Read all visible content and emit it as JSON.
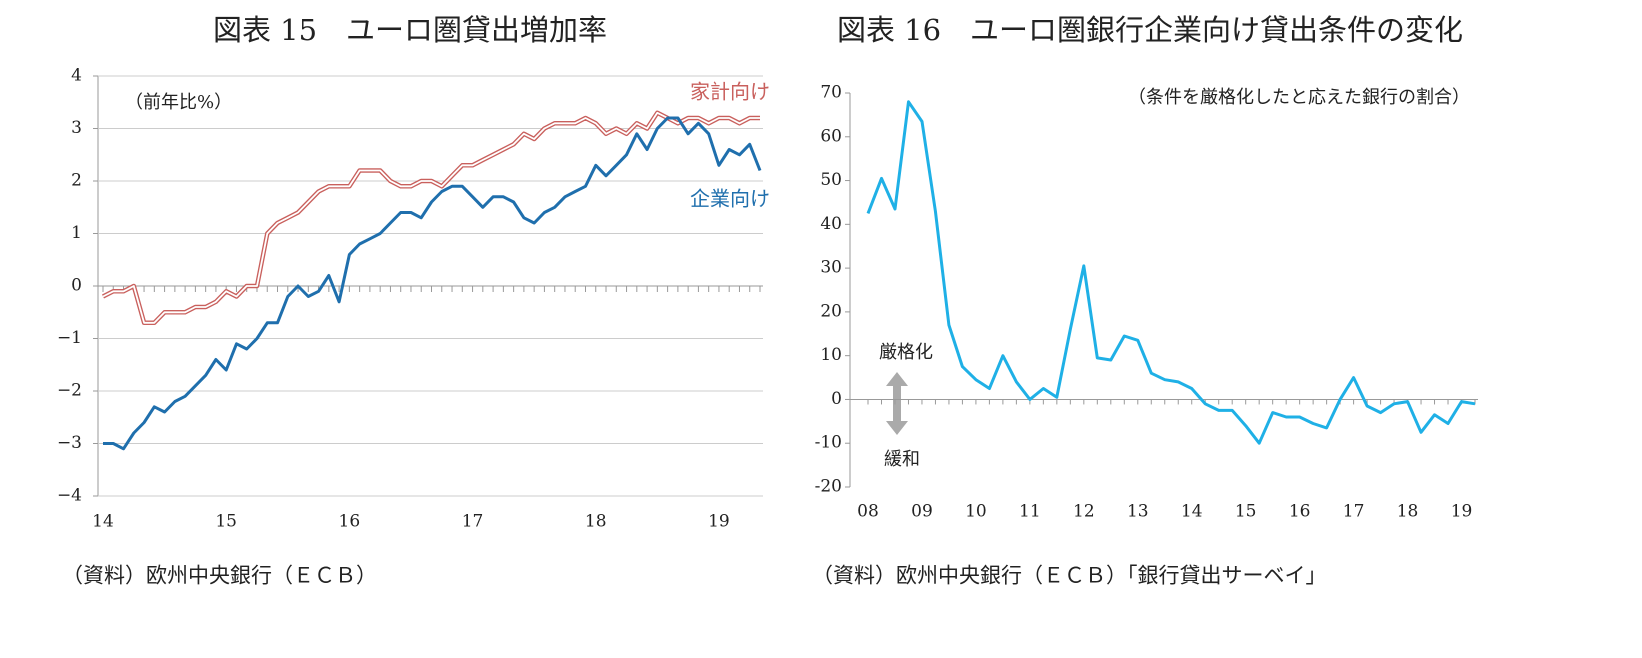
{
  "chart_data": [
    {
      "type": "line",
      "title": "図表 15　ユーロ圏貸出増加率",
      "annotations": [
        "（前年比%）"
      ],
      "source": "（資料）欧州中央銀行（ＥＣＢ）",
      "categories": [
        "14",
        null,
        null,
        null,
        null,
        null,
        null,
        null,
        null,
        null,
        null,
        null,
        "15",
        null,
        null,
        null,
        null,
        null,
        null,
        null,
        null,
        null,
        null,
        null,
        "16",
        null,
        null,
        null,
        null,
        null,
        null,
        null,
        null,
        null,
        null,
        null,
        "17",
        null,
        null,
        null,
        null,
        null,
        null,
        null,
        null,
        null,
        null,
        null,
        "18",
        null,
        null,
        null,
        null,
        null,
        null,
        null,
        null,
        null,
        null,
        null,
        "19",
        null,
        null,
        null,
        null
      ],
      "series": [
        {
          "name": "家計向け",
          "color": "#c9605d",
          "style": "double",
          "values": [
            -0.2,
            -0.1,
            -0.1,
            0.0,
            -0.7,
            -0.7,
            -0.5,
            -0.5,
            -0.5,
            -0.4,
            -0.4,
            -0.3,
            -0.1,
            -0.2,
            0.0,
            0.0,
            1.0,
            1.2,
            1.3,
            1.4,
            1.6,
            1.8,
            1.9,
            1.9,
            1.9,
            2.2,
            2.2,
            2.2,
            2.0,
            1.9,
            1.9,
            2.0,
            2.0,
            1.9,
            2.1,
            2.3,
            2.3,
            2.4,
            2.5,
            2.6,
            2.7,
            2.9,
            2.8,
            3.0,
            3.1,
            3.1,
            3.1,
            3.2,
            3.1,
            2.9,
            3.0,
            2.9,
            3.1,
            3.0,
            3.3,
            3.2,
            3.1,
            3.2,
            3.2,
            3.1,
            3.2,
            3.2,
            3.1,
            3.2,
            3.2
          ]
        },
        {
          "name": "企業向け",
          "color": "#1f6fad",
          "style": "solid",
          "values": [
            -3.0,
            -3.0,
            -3.1,
            -2.8,
            -2.6,
            -2.3,
            -2.4,
            -2.2,
            -2.1,
            -1.9,
            -1.7,
            -1.4,
            -1.6,
            -1.1,
            -1.2,
            -1.0,
            -0.7,
            -0.7,
            -0.2,
            0.0,
            -0.2,
            -0.1,
            0.2,
            -0.3,
            0.6,
            0.8,
            0.9,
            1.0,
            1.2,
            1.4,
            1.4,
            1.3,
            1.6,
            1.8,
            1.9,
            1.9,
            1.7,
            1.5,
            1.7,
            1.7,
            1.6,
            1.3,
            1.2,
            1.4,
            1.5,
            1.7,
            1.8,
            1.9,
            2.3,
            2.1,
            2.3,
            2.5,
            2.9,
            2.6,
            3.0,
            3.2,
            3.2,
            2.9,
            3.1,
            2.9,
            2.3,
            2.6,
            2.5,
            2.7,
            2.2
          ]
        }
      ],
      "ylim": [
        -4,
        4
      ],
      "yticks": [
        {
          "value": -4,
          "label": "−4"
        },
        {
          "value": -3,
          "label": "−3"
        },
        {
          "value": -2,
          "label": "−2"
        },
        {
          "value": -1,
          "label": "−1"
        },
        0,
        1,
        2,
        3,
        4
      ],
      "grid": true
    },
    {
      "type": "line",
      "title": "図表 16　ユーロ圏銀行企業向け貸出条件の変化",
      "annotations": [
        "（条件を厳格化したと応えた銀行の割合）",
        "厳格化",
        "緩和"
      ],
      "source": "（資料）欧州中央銀行（ＥＣＢ）「銀行貸出サーベイ」",
      "categories": [
        "08",
        null,
        null,
        null,
        "09",
        null,
        null,
        null,
        "10",
        null,
        null,
        null,
        "11",
        null,
        null,
        null,
        "12",
        null,
        null,
        null,
        "13",
        null,
        null,
        null,
        "14",
        null,
        null,
        null,
        "15",
        null,
        null,
        null,
        "16",
        null,
        null,
        null,
        "17",
        null,
        null,
        null,
        "18",
        null,
        null,
        null,
        "19",
        null
      ],
      "series": [
        {
          "color": "#1fb0e6",
          "style": "solid",
          "values": [
            42.5,
            50.5,
            43.5,
            68,
            63.5,
            43,
            17,
            7.5,
            4.5,
            2.5,
            10,
            4,
            0,
            2.5,
            0.5,
            16,
            30.5,
            9.5,
            9,
            14.5,
            13.5,
            6,
            4.5,
            4,
            2.5,
            -1,
            -2.5,
            -2.5,
            -6,
            -10,
            -3,
            -4,
            -4,
            -5.5,
            -6.5,
            0,
            5,
            -1.5,
            -3,
            -1,
            -0.5,
            -7.5,
            -3.5,
            -5.5,
            -0.5,
            -1
          ]
        }
      ],
      "ylim": [
        -20,
        70
      ],
      "yticks": [
        -20,
        -10,
        0,
        10,
        20,
        30,
        40,
        50,
        60,
        70
      ],
      "grid": false
    }
  ]
}
